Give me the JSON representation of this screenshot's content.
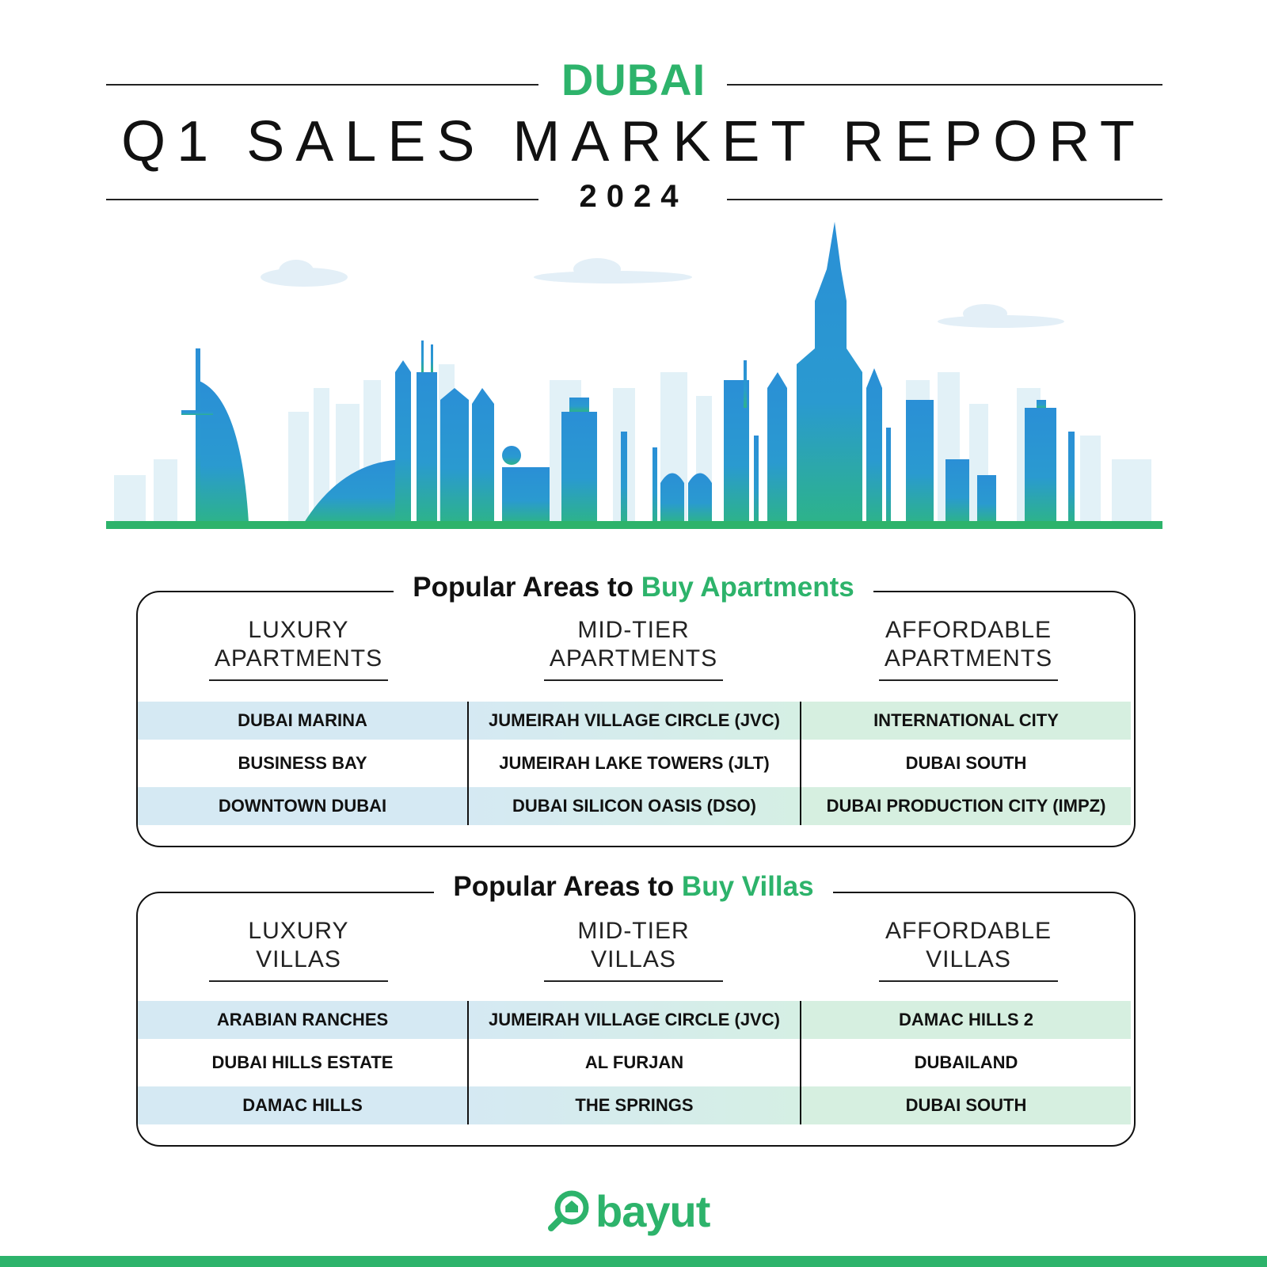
{
  "header": {
    "city": "DUBAI",
    "title": "Q1 SALES MARKET REPORT",
    "year": "2024"
  },
  "apartments": {
    "title_prefix": "Popular Areas to",
    "title_highlight": "Buy Apartments",
    "columns": [
      {
        "heading_line1": "LUXURY",
        "heading_line2": "APARTMENTS",
        "areas": [
          "DUBAI MARINA",
          "BUSINESS BAY",
          "DOWNTOWN DUBAI"
        ]
      },
      {
        "heading_line1": "MID-TIER",
        "heading_line2": "APARTMENTS",
        "areas": [
          "JUMEIRAH VILLAGE CIRCLE (JVC)",
          "JUMEIRAH LAKE TOWERS (JLT)",
          "DUBAI SILICON OASIS (DSO)"
        ]
      },
      {
        "heading_line1": "AFFORDABLE",
        "heading_line2": "APARTMENTS",
        "areas": [
          "INTERNATIONAL CITY",
          "DUBAI SOUTH",
          "DUBAI PRODUCTION CITY (IMPZ)"
        ]
      }
    ]
  },
  "villas": {
    "title_prefix": "Popular Areas to",
    "title_highlight": "Buy Villas",
    "columns": [
      {
        "heading_line1": "LUXURY",
        "heading_line2": "VILLAS",
        "areas": [
          "ARABIAN RANCHES",
          "DUBAI HILLS ESTATE",
          "DAMAC HILLS"
        ]
      },
      {
        "heading_line1": "MID-TIER",
        "heading_line2": "VILLAS",
        "areas": [
          "JUMEIRAH VILLAGE CIRCLE (JVC)",
          "AL FURJAN",
          "THE SPRINGS"
        ]
      },
      {
        "heading_line1": "AFFORDABLE",
        "heading_line2": "VILLAS",
        "areas": [
          "DAMAC HILLS 2",
          "DUBAILAND",
          "DUBAI SOUTH"
        ]
      }
    ]
  },
  "footer": {
    "brand": "bayut"
  },
  "colors": {
    "brand_green": "#2db36b",
    "sky_blue": "#2a8fd6",
    "band_blue": "#d5e9f3",
    "band_green": "#d6efe0"
  }
}
